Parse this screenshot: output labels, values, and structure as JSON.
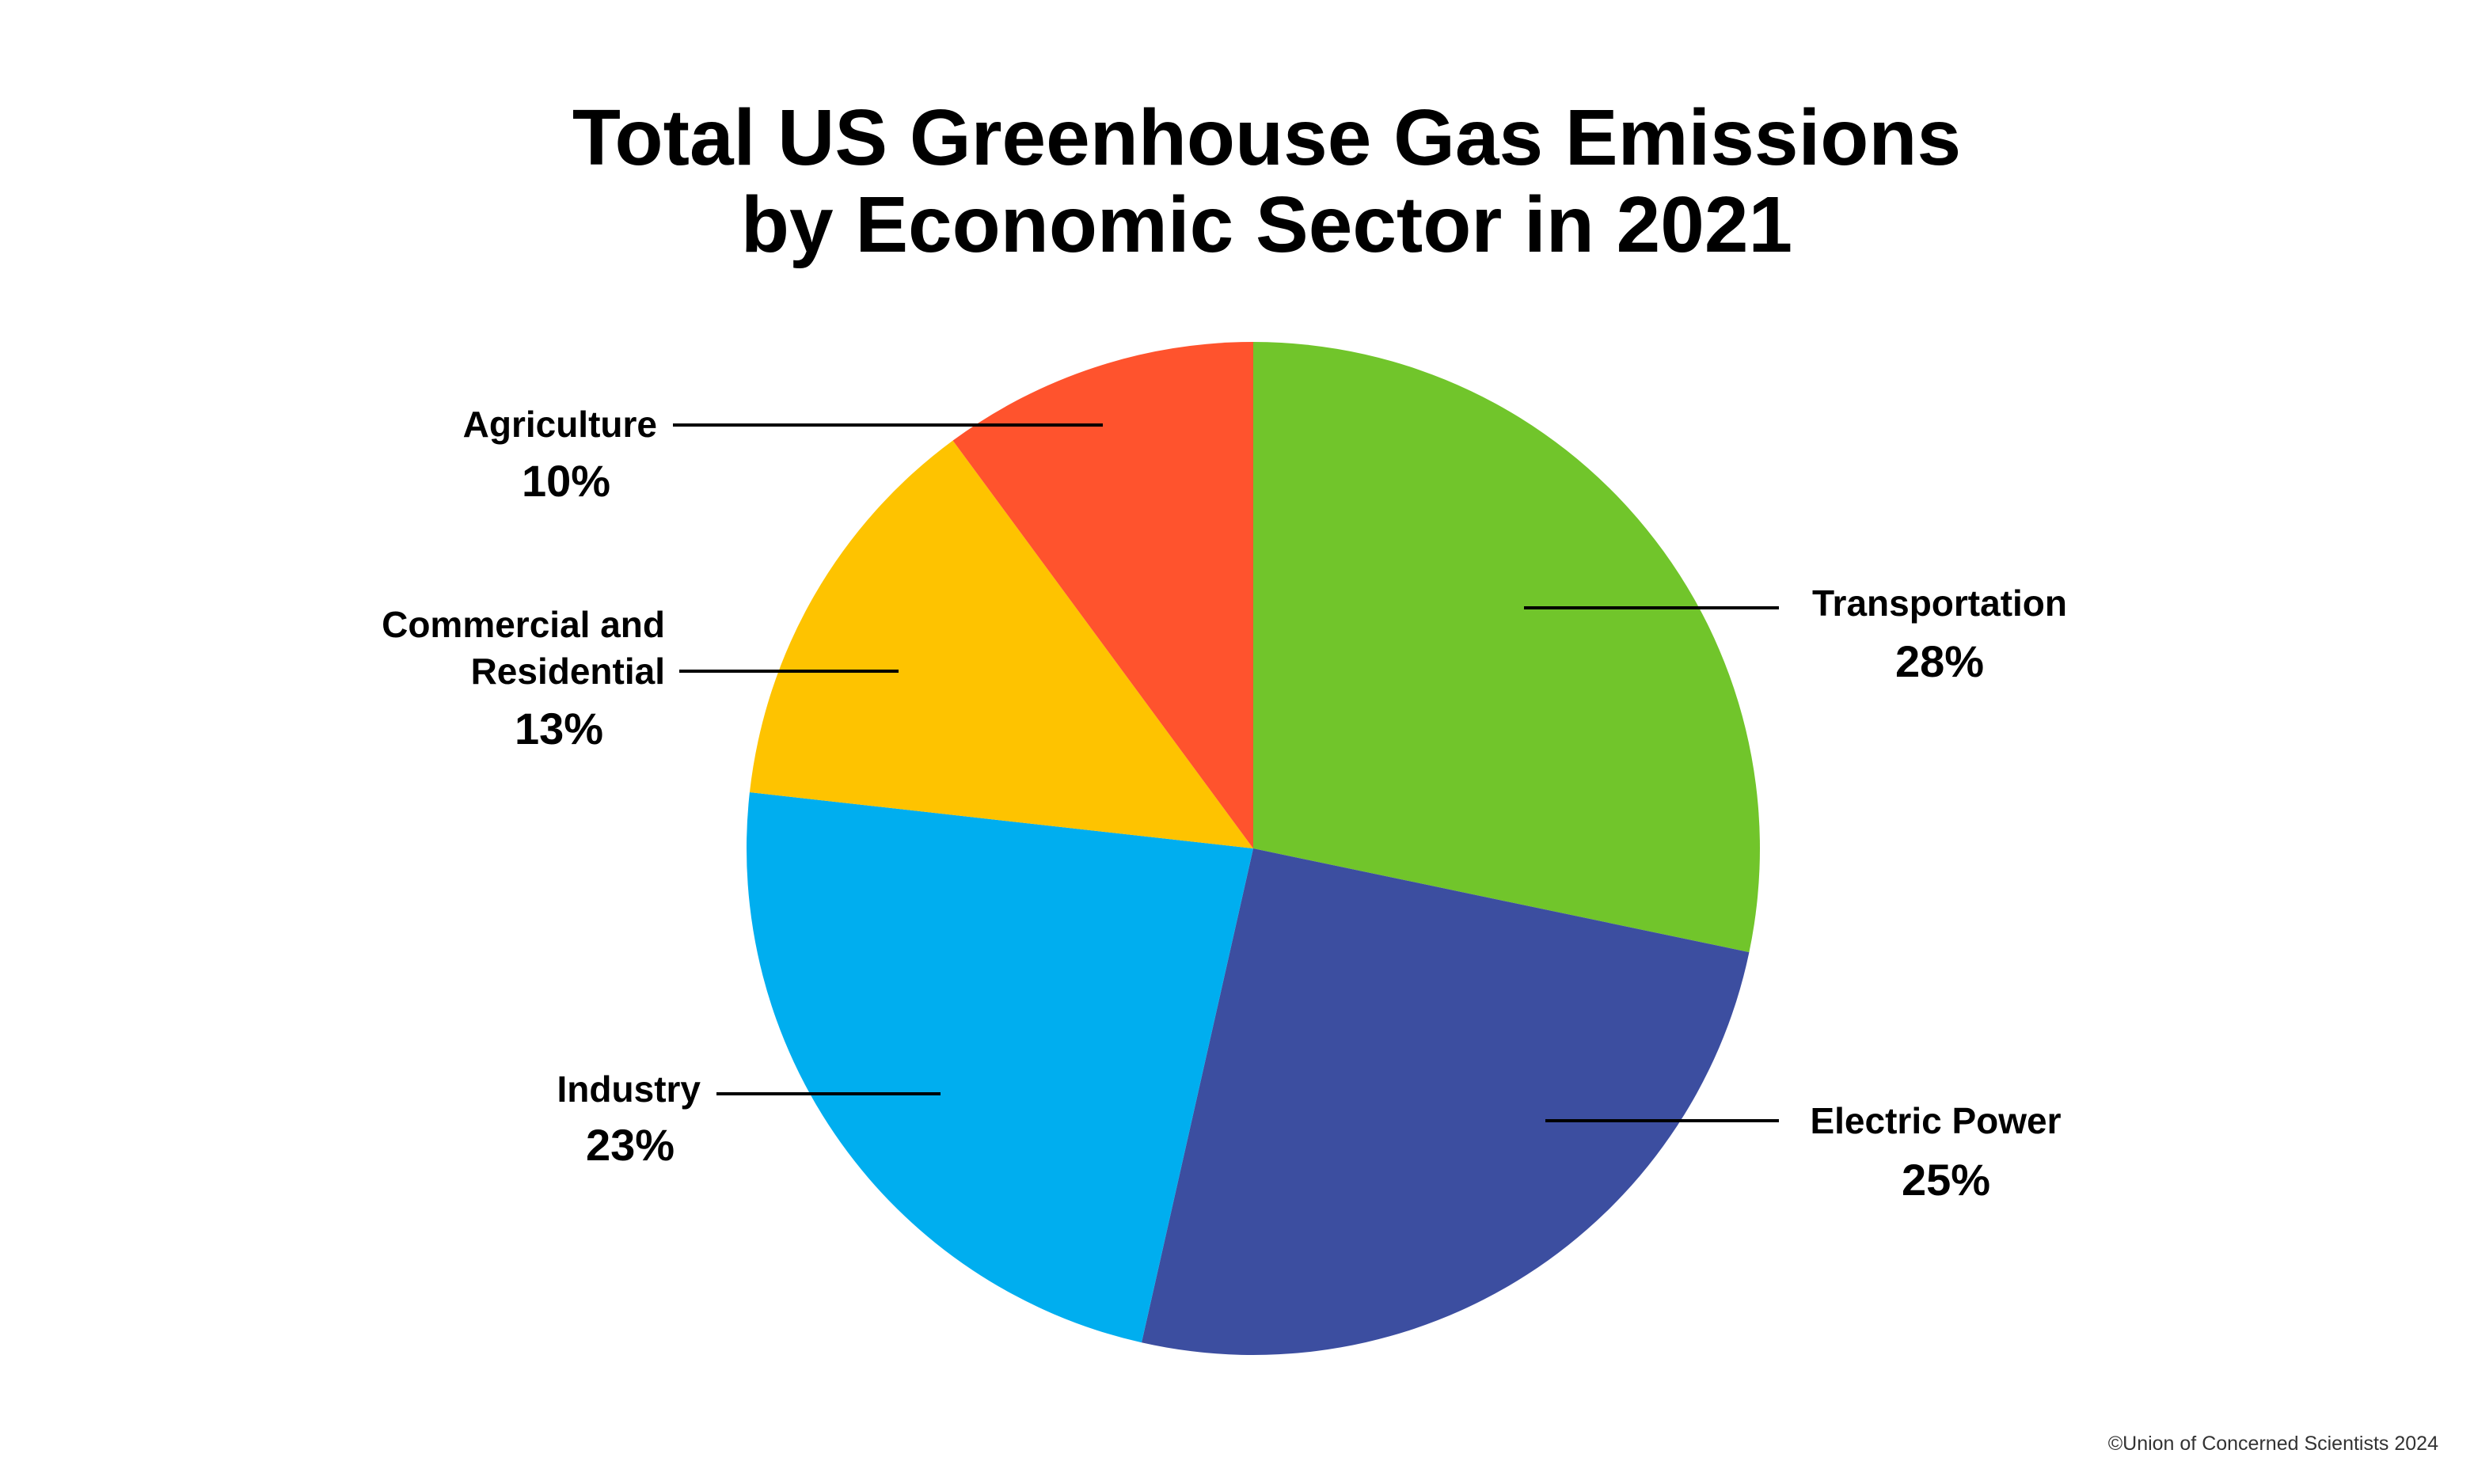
{
  "chart_data": {
    "type": "pie",
    "title": "Total US Greenhouse Gas Emissions by Economic Sector in 2021",
    "title_lines": [
      "Total US Greenhouse Gas Emissions",
      "by Economic Sector in 2021"
    ],
    "start_angle_deg": 0,
    "direction": "clockwise",
    "slices": [
      {
        "label": "Transportation",
        "label_lines": [
          "Transportation"
        ],
        "value": 28,
        "value_label": "28%",
        "color": "#71c52b"
      },
      {
        "label": "Electric Power",
        "label_lines": [
          "Electric Power"
        ],
        "value": 25,
        "value_label": "25%",
        "color": "#3c4ea0"
      },
      {
        "label": "Industry",
        "label_lines": [
          "Industry"
        ],
        "value": 23,
        "value_label": "23%",
        "color": "#00aeef"
      },
      {
        "label": "Commercial and Residential",
        "label_lines": [
          "Commercial and",
          "Residential"
        ],
        "value": 13,
        "value_label": "13%",
        "color": "#fec300"
      },
      {
        "label": "Agriculture",
        "label_lines": [
          "Agriculture"
        ],
        "value": 10,
        "value_label": "10%",
        "color": "#ff532d"
      }
    ],
    "legend": "none",
    "labels_placement": "outside with leader lines"
  },
  "credit": "©Union of Concerned Scientists 2024"
}
